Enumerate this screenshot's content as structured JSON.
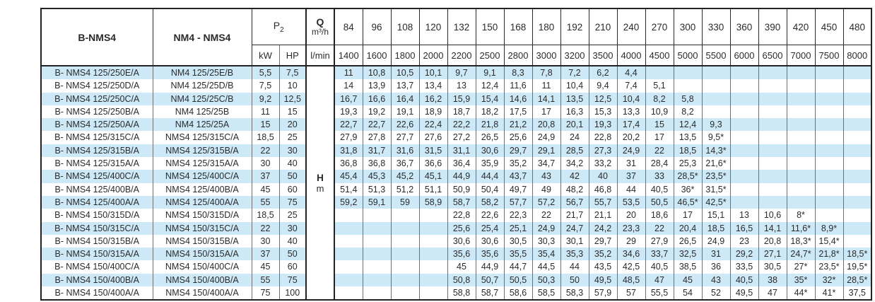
{
  "table": {
    "header": {
      "col_model_a": "B-NMS4",
      "col_model_b": "NM4 - NMS4",
      "p2_base": "P",
      "p2_sub": "2",
      "kw_label": "kW",
      "hp_label": "HP",
      "q_label": "Q",
      "q_unit": "m³/h",
      "lmin_label": "l/min",
      "flow_m3h": [
        "84",
        "96",
        "108",
        "120",
        "132",
        "150",
        "168",
        "180",
        "192",
        "210",
        "240",
        "270",
        "300",
        "330",
        "360",
        "390",
        "420",
        "450",
        "480"
      ],
      "flow_lmin": [
        "1400",
        "1600",
        "1800",
        "2000",
        "2200",
        "2500",
        "2800",
        "3000",
        "3200",
        "3500",
        "4000",
        "4500",
        "5000",
        "5500",
        "6000",
        "6500",
        "7000",
        "7500",
        "8000"
      ]
    },
    "h_label": {
      "symbol": "H",
      "unit": "m"
    },
    "rows": [
      {
        "model_a": "B- NMS4 125/250E/A",
        "model_b": "NM4 125/25E/B",
        "kw": "5,5",
        "hp": "7,5",
        "values": [
          "11",
          "10,8",
          "10,5",
          "10,1",
          "9,7",
          "9,1",
          "8,3",
          "7,8",
          "7,2",
          "6,2",
          "4,4",
          "",
          "",
          "",
          "",
          "",
          "",
          "",
          ""
        ]
      },
      {
        "model_a": "B- NMS4 125/250D/A",
        "model_b": "NM4 125/25D/B",
        "kw": "7,5",
        "hp": "10",
        "values": [
          "14",
          "13,9",
          "13,7",
          "13,4",
          "13",
          "12,4",
          "11,6",
          "11",
          "10,4",
          "9,4",
          "7,4",
          "5,1",
          "",
          "",
          "",
          "",
          "",
          "",
          ""
        ]
      },
      {
        "model_a": "B- NMS4 125/250C/A",
        "model_b": "NM4 125/25C/B",
        "kw": "9,2",
        "hp": "12,5",
        "values": [
          "16,7",
          "16,6",
          "16,4",
          "16,2",
          "15,9",
          "15,4",
          "14,6",
          "14,1",
          "13,5",
          "12,5",
          "10,4",
          "8,2",
          "5,8",
          "",
          "",
          "",
          "",
          "",
          ""
        ]
      },
      {
        "model_a": "B- NMS4 125/250B/A",
        "model_b": "NM4 125/25B",
        "kw": "11",
        "hp": "15",
        "values": [
          "19,3",
          "19,2",
          "19,1",
          "18,9",
          "18,7",
          "18,2",
          "17,5",
          "17",
          "16,3",
          "15,3",
          "13,3",
          "10,9",
          "8,2",
          "",
          "",
          "",
          "",
          "",
          ""
        ]
      },
      {
        "model_a": "B- NMS4 125/250A/A",
        "model_b": "NM4 125/25A",
        "kw": "15",
        "hp": "20",
        "values": [
          "22,7",
          "22,7",
          "22,6",
          "22,4",
          "22,2",
          "21,8",
          "21,2",
          "20,8",
          "20,1",
          "19,3",
          "17,4",
          "15",
          "12,4",
          "9,3",
          "",
          "",
          "",
          "",
          ""
        ]
      },
      {
        "model_a": "B- NMS4 125/315C/A",
        "model_b": "NMS4 125/315C/A",
        "kw": "18,5",
        "hp": "25",
        "values": [
          "27,9",
          "27,8",
          "27,7",
          "27,6",
          "27,2",
          "26,5",
          "25,6",
          "24,9",
          "24",
          "22,8",
          "20,2",
          "17",
          "13,5",
          "9,5*",
          "",
          "",
          "",
          "",
          ""
        ]
      },
      {
        "model_a": "B- NMS4 125/315B/A",
        "model_b": "NMS4 125/315B/A",
        "kw": "22",
        "hp": "30",
        "values": [
          "31,8",
          "31,7",
          "31,6",
          "31,5",
          "31,1",
          "30,6",
          "29,7",
          "29,1",
          "28,5",
          "27,3",
          "24,9",
          "22",
          "18,5",
          "14,3*",
          "",
          "",
          "",
          "",
          ""
        ]
      },
      {
        "model_a": "B- NMS4 125/315A/A",
        "model_b": "NMS4 125/315A/A",
        "kw": "30",
        "hp": "40",
        "values": [
          "36,8",
          "36,8",
          "36,7",
          "36,6",
          "36,4",
          "35,9",
          "35,2",
          "34,7",
          "34,2",
          "33,2",
          "31",
          "28,4",
          "25,3",
          "21,6*",
          "",
          "",
          "",
          "",
          ""
        ]
      },
      {
        "model_a": "B- NMS4 125/400C/A",
        "model_b": "NMS4 125/400C/A",
        "kw": "37",
        "hp": "50",
        "values": [
          "45,4",
          "45,3",
          "45,2",
          "45,1",
          "44,9",
          "44,4",
          "43,7",
          "43",
          "42",
          "40",
          "37",
          "33",
          "28,5*",
          "23,5*",
          "",
          "",
          "",
          "",
          ""
        ]
      },
      {
        "model_a": "B- NMS4 125/400B/A",
        "model_b": "NMS4 125/400B/A",
        "kw": "45",
        "hp": "60",
        "values": [
          "51,4",
          "51,3",
          "51,2",
          "51,1",
          "50,9",
          "50,4",
          "49,7",
          "49",
          "48,2",
          "46,8",
          "44",
          "40,5",
          "36*",
          "31,5*",
          "",
          "",
          "",
          "",
          ""
        ]
      },
      {
        "model_a": "B- NMS4 125/400A/A",
        "model_b": "NMS4 125/400A/A",
        "kw": "55",
        "hp": "75",
        "values": [
          "59,2",
          "59,1",
          "59",
          "58,9",
          "58,7",
          "58,2",
          "57,7",
          "57,2",
          "56,7",
          "55,7",
          "53,5",
          "50,5",
          "46,5*",
          "42,5*",
          "",
          "",
          "",
          "",
          ""
        ]
      },
      {
        "model_a": "B- NMS4 150/315D/A",
        "model_b": "NMS4 150/315D/A",
        "kw": "18,5",
        "hp": "25",
        "values": [
          "",
          "",
          "",
          "",
          "22,8",
          "22,6",
          "22,3",
          "22",
          "21,7",
          "21,1",
          "20",
          "18,6",
          "17",
          "15,1",
          "13",
          "10,6",
          "8*",
          "",
          ""
        ]
      },
      {
        "model_a": "B- NMS4 150/315C/A",
        "model_b": "NMS4 150/315C/A",
        "kw": "22",
        "hp": "30",
        "values": [
          "",
          "",
          "",
          "",
          "25,6",
          "25,4",
          "25,1",
          "24,9",
          "24,7",
          "24,2",
          "23,3",
          "22",
          "20,4",
          "18,5",
          "16,5",
          "14,1",
          "11,6*",
          "8,9*",
          ""
        ]
      },
      {
        "model_a": "B- NMS4 150/315B/A",
        "model_b": "NMS4 150/315B/A",
        "kw": "30",
        "hp": "40",
        "values": [
          "",
          "",
          "",
          "",
          "30,6",
          "30,6",
          "30,5",
          "30,3",
          "30,1",
          "29,7",
          "29",
          "27,9",
          "26,5",
          "24,9",
          "23",
          "20,8",
          "18,3*",
          "15,4*",
          ""
        ]
      },
      {
        "model_a": "B- NMS4 150/315A/A",
        "model_b": "NMS4 150/315A/A",
        "kw": "37",
        "hp": "50",
        "values": [
          "",
          "",
          "",
          "",
          "35,6",
          "35,6",
          "35,5",
          "35,4",
          "35,3",
          "35,2",
          "34,6",
          "33,7",
          "32,5",
          "31",
          "29,2",
          "27,1",
          "24,7*",
          "21,8*",
          "18,5*"
        ]
      },
      {
        "model_a": "B- NMS4 150/400C/A",
        "model_b": "NMS4 150/400C/A",
        "kw": "45",
        "hp": "60",
        "values": [
          "",
          "",
          "",
          "",
          "45",
          "44,9",
          "44,7",
          "44,5",
          "44",
          "43,5",
          "42,5",
          "40,5",
          "38,5",
          "36",
          "33,5",
          "30,5",
          "27*",
          "23,5*",
          "19,5*"
        ]
      },
      {
        "model_a": "B- NMS4 150/400B/A",
        "model_b": "NMS4 150/400B/A",
        "kw": "55",
        "hp": "75",
        "values": [
          "",
          "",
          "",
          "",
          "50,8",
          "50,7",
          "50,5",
          "50,3",
          "50",
          "49,5",
          "48,5",
          "47",
          "45",
          "43",
          "40,5",
          "38",
          "35*",
          "32*",
          "28,5*"
        ]
      },
      {
        "model_a": "B- NMS4 150/400A/A",
        "model_b": "NMS4 150/400A/A",
        "kw": "75",
        "hp": "100",
        "values": [
          "",
          "",
          "",
          "",
          "58,8",
          "58,7",
          "58,6",
          "58,5",
          "58,3",
          "57,9",
          "57",
          "55,5",
          "54",
          "52",
          "49,5",
          "47",
          "44*",
          "41*",
          "37,5"
        ]
      }
    ]
  }
}
